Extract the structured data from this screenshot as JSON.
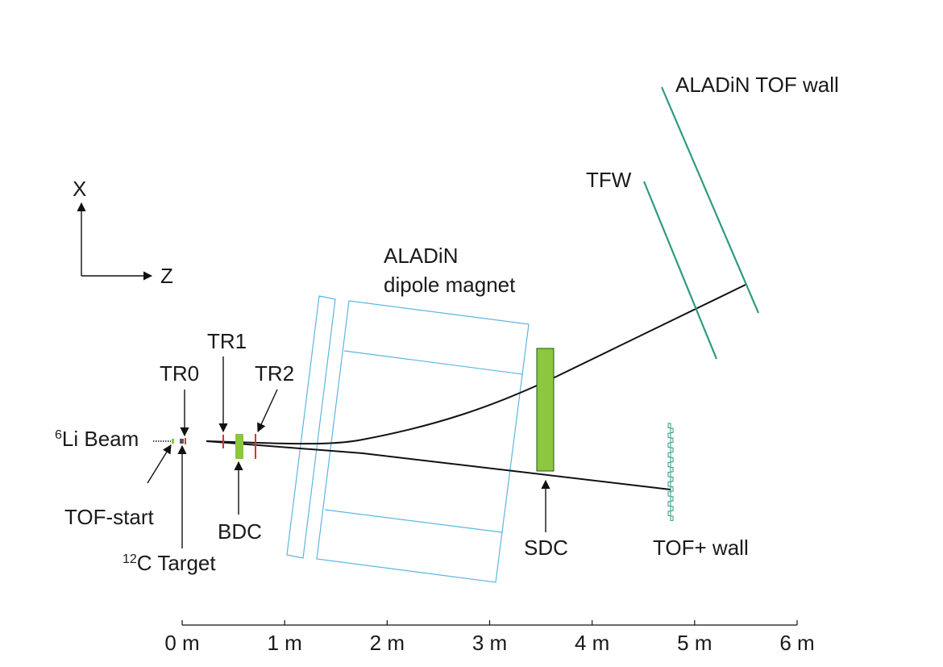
{
  "colors": {
    "magnet": "#5bb7e0",
    "bdc_sdc": "#8dc63f",
    "tracker": "#e03030",
    "wall": "#2e9a82",
    "track": "#111111"
  },
  "labels": {
    "axis_x": "X",
    "axis_z": "Z",
    "beam_prefix": "6",
    "beam": "Li Beam",
    "tof_start": "TOF-start",
    "target_prefix": "12",
    "target": "C Target",
    "tr0": "TR0",
    "tr1": "TR1",
    "tr2": "TR2",
    "bdc": "BDC",
    "magnet_line1": "ALADiN",
    "magnet_line2": "dipole magnet",
    "sdc": "SDC",
    "tfw": "TFW",
    "aladin_tof": "ALADiN TOF wall",
    "tof_plus": "TOF+ wall"
  },
  "scale_axis": {
    "unit": "m",
    "ticks": [
      "0 m",
      "1 m",
      "2 m",
      "3 m",
      "4 m",
      "5 m",
      "6 m"
    ]
  }
}
